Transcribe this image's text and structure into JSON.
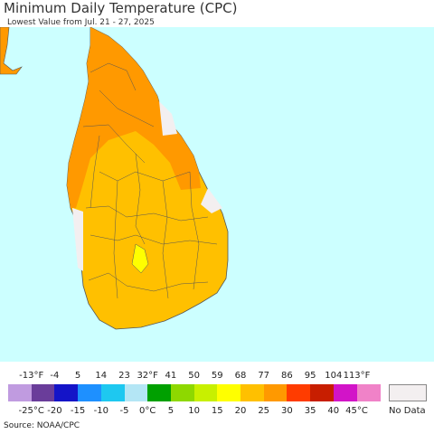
{
  "header": {
    "title": "Minimum Daily Temperature (CPC)",
    "subtitle": "Lowest Value from Jul. 21 - 27, 2025"
  },
  "map": {
    "region": "Sri Lanka",
    "colors": {
      "ocean": "#ccffff",
      "land_orange": "#ff9900",
      "land_gold": "#ffc000",
      "land_yellow": "#ffff00",
      "nodata": "#f3eff0",
      "border": "#555555"
    }
  },
  "legend": {
    "fahrenheit_ticks": [
      "-13°F",
      "-4",
      "5",
      "14",
      "23",
      "32°F",
      "41",
      "50",
      "59",
      "68",
      "77",
      "86",
      "95",
      "104",
      "113°F"
    ],
    "celsius_ticks": [
      "-25°C",
      "-20",
      "-15",
      "-10",
      "-5",
      "0°C",
      "5",
      "10",
      "15",
      "20",
      "25",
      "30",
      "35",
      "40",
      "45°C"
    ],
    "colors": [
      "#c09be0",
      "#6a3d9a",
      "#1414c8",
      "#1e90ff",
      "#1ec8f0",
      "#b4e6f5",
      "#00a000",
      "#8ed800",
      "#c8f000",
      "#ffff00",
      "#ffc000",
      "#ff9900",
      "#ff3c00",
      "#c81e00",
      "#d214c8",
      "#f082c8"
    ],
    "nodata_label": "No Data",
    "nodata_color": "#f3eff0"
  },
  "footer": {
    "source": "Source: NOAA/CPC"
  }
}
